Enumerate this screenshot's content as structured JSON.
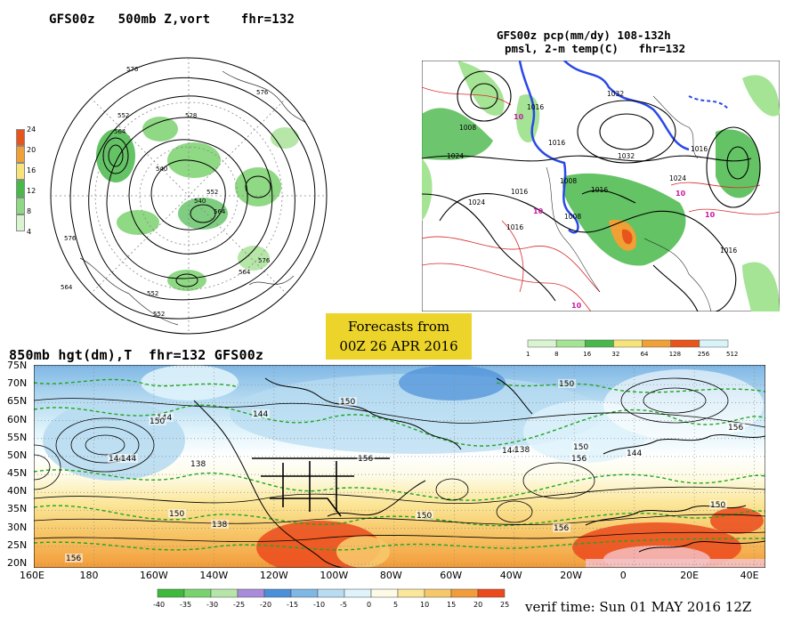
{
  "panels": {
    "polar": {
      "title": "GFS00z   500mb Z,vort    fhr=132",
      "colorbar_ticks": [
        "24",
        "20",
        "16",
        "12",
        "8",
        "4"
      ],
      "colorbar_colors": [
        "#e8551c",
        "#f0a035",
        "#f6e47a",
        "#49b84a",
        "#8fd884",
        "#d8f4d0"
      ],
      "contour_labels": [
        "576",
        "576",
        "552",
        "564",
        "528",
        "540",
        "540",
        "552",
        "564",
        "576",
        "576",
        "564",
        "552",
        "552",
        "564"
      ]
    },
    "na": {
      "title_line1": "GFS00z pcp(mm/dy) 108-132h",
      "title_line2": "pmsl, 2-m temp(C)   fhr=132",
      "isobar_labels": [
        "1008",
        "1016",
        "1024",
        "1032",
        "1016",
        "1024",
        "1008",
        "1016",
        "1016",
        "1016",
        "1024",
        "1032",
        "1016",
        "1008",
        "1016"
      ],
      "temp_labels": [
        "10",
        "10",
        "10",
        "10",
        "10"
      ],
      "colorbar_ticks": [
        "1",
        "8",
        "16",
        "32",
        "64",
        "128",
        "256",
        "512"
      ],
      "colorbar_colors": [
        "#d8f4d0",
        "#a4e494",
        "#49b84a",
        "#f6e47a",
        "#f0a035",
        "#e8551c",
        "#d8f4f8"
      ]
    },
    "forecast_box": {
      "line1": "Forecasts from",
      "line2": "00Z 26 APR 2016"
    },
    "main": {
      "title": "850mb hgt(dm),T  fhr=132 GFS00z",
      "lat_labels": [
        "75N",
        "70N",
        "65N",
        "60N",
        "55N",
        "50N",
        "45N",
        "40N",
        "35N",
        "30N",
        "25N",
        "20N"
      ],
      "lon_labels": [
        "160E",
        "180",
        "160W",
        "140W",
        "120W",
        "100W",
        "80W",
        "60W",
        "40W",
        "20W",
        "0",
        "20E",
        "40E"
      ],
      "height_labels": [
        "144",
        "144",
        "138",
        "150",
        "144",
        "150",
        "156",
        "150",
        "138",
        "144",
        "156",
        "156",
        "150",
        "156",
        "150",
        "156",
        "144",
        "150",
        "138",
        "144",
        "150"
      ],
      "colorbar_ticks": [
        "-40",
        "-35",
        "-30",
        "-25",
        "-20",
        "-15",
        "-10",
        "-5",
        "0",
        "5",
        "10",
        "15",
        "20",
        "25"
      ],
      "colorbar_colors": [
        "#3db93b",
        "#79d36c",
        "#b5e6a8",
        "#a98bdc",
        "#4a8fd9",
        "#7fb7e5",
        "#b8dcf1",
        "#dff3fb",
        "#fdfbe6",
        "#fbe79a",
        "#f7c86a",
        "#f39c3a",
        "#ec4a1c"
      ]
    }
  },
  "verif": "verif time: Sun 01 MAY 2016 12Z"
}
